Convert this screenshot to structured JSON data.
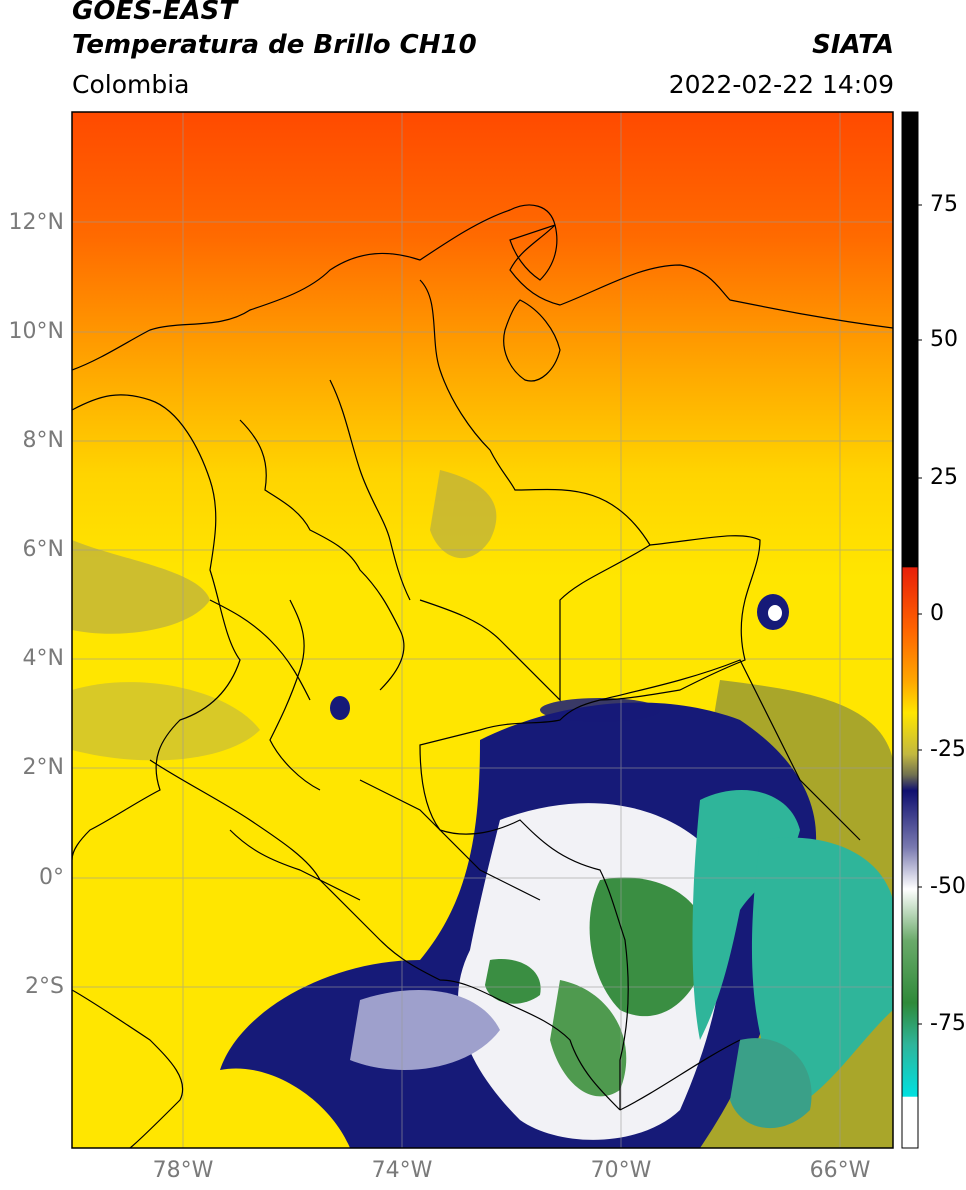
{
  "header": {
    "satellite": "GOES-EAST",
    "product": "Temperatura de Brillo CH10",
    "region": "Colombia",
    "source": "SIATA",
    "datetime": "2022-02-22 14:09"
  },
  "axes": {
    "lat_labels": [
      "12°N",
      "10°N",
      "8°N",
      "6°N",
      "4°N",
      "2°N",
      "0°",
      "2°S"
    ],
    "lon_labels": [
      "78°W",
      "74°W",
      "70°W",
      "66°W"
    ]
  },
  "colorbar": {
    "ticks": [
      "75",
      "50",
      "25",
      "0",
      "-25",
      "-50",
      "-75"
    ],
    "colors": {
      "black": "#000000",
      "red": "#e8200a",
      "orange": "#ff8a00",
      "yellow": "#ffe600",
      "olive": "#a9a62a",
      "navy": "#101070",
      "white": "#ffffff",
      "green": "#2f8a3a",
      "teal": "#2fb59a",
      "cyan": "#00e0e0"
    }
  }
}
